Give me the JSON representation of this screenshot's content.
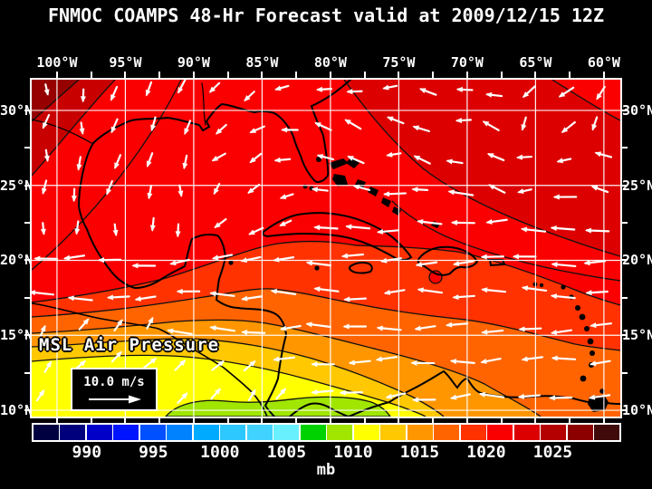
{
  "title": "FNMOC COAMPS 48-Hr Forecast valid at 2009/12/15 12Z",
  "axes": {
    "lon_labels": [
      "100°W",
      "95°W",
      "90°W",
      "85°W",
      "80°W",
      "75°W",
      "70°W",
      "65°W",
      "60°W"
    ],
    "lon_values": [
      -100,
      -95,
      -90,
      -85,
      -80,
      -75,
      -70,
      -65,
      -60
    ],
    "lat_labels_left": [
      "30°N",
      "25°N",
      "20°N",
      "15°N",
      "10°N"
    ],
    "lat_labels_right": [
      "30°N",
      "25°N",
      "20°N",
      "15°N",
      "10°N"
    ],
    "lat_values": [
      30,
      25,
      20,
      15,
      10
    ]
  },
  "map": {
    "field_label": "MSL Air Pressure",
    "wind_scale_label": "10.0 m/s",
    "region": "Gulf of Mexico and Caribbean Sea",
    "pressure_band_colors": {
      "red_base": "#fa0000",
      "dark_red": "#c80000",
      "darkest_red": "#960000",
      "orange_red": "#ff3200",
      "orange": "#ff6400",
      "light_orange": "#ff9600",
      "gold": "#ffc800",
      "yellow": "#ffff00",
      "green": "#a0e600"
    },
    "grid_color": "#ffffff",
    "coast_color": "#000000",
    "arrow_color": "#ffffff"
  },
  "colorbar": {
    "unit": "mb",
    "tick_values": [
      990,
      995,
      1000,
      1005,
      1010,
      1015,
      1020,
      1025
    ],
    "min_value": 986,
    "max_value": 1030,
    "cell_step_mb": 2,
    "cell_colors": [
      "#000041",
      "#00007d",
      "#0000c8",
      "#0014ff",
      "#0050ff",
      "#0082ff",
      "#00aaff",
      "#2dc8ff",
      "#41d2ff",
      "#69f0ff",
      "#00d200",
      "#a0e600",
      "#ffff00",
      "#ffc800",
      "#ff9600",
      "#ff6400",
      "#ff3200",
      "#fa0000",
      "#dc0000",
      "#b40000",
      "#8c0000",
      "#400a0a"
    ]
  }
}
